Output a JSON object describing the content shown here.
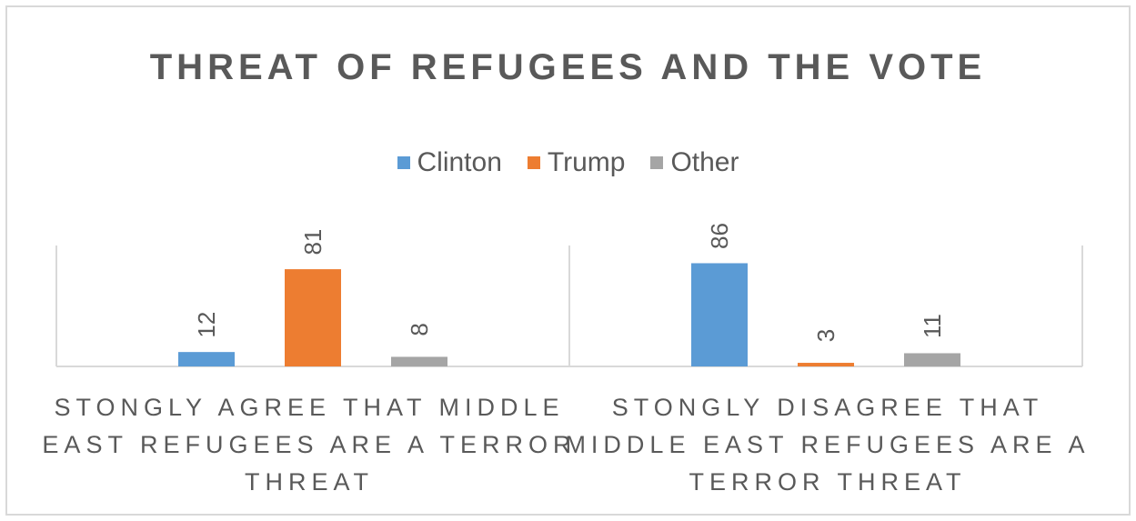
{
  "chart_data": {
    "type": "bar",
    "title": "THREAT OF REFUGEES AND THE VOTE",
    "categories": [
      [
        "STONGLY AGREE THAT MIDDLE",
        "EAST REFUGEES ARE A TERROR",
        "THREAT"
      ],
      [
        "STONGLY DISAGREE THAT",
        "MIDDLE EAST REFUGEES ARE A",
        "TERROR THREAT"
      ]
    ],
    "series": [
      {
        "name": "Clinton",
        "values": [
          12,
          86
        ],
        "color": "#5b9bd5"
      },
      {
        "name": "Trump",
        "values": [
          81,
          3
        ],
        "color": "#ed7d31"
      },
      {
        "name": "Other",
        "values": [
          8,
          11
        ],
        "color": "#a5a5a5"
      }
    ],
    "ylim": [
      0,
      100
    ],
    "legend_position": "top",
    "grid": false,
    "data_labels": true
  }
}
